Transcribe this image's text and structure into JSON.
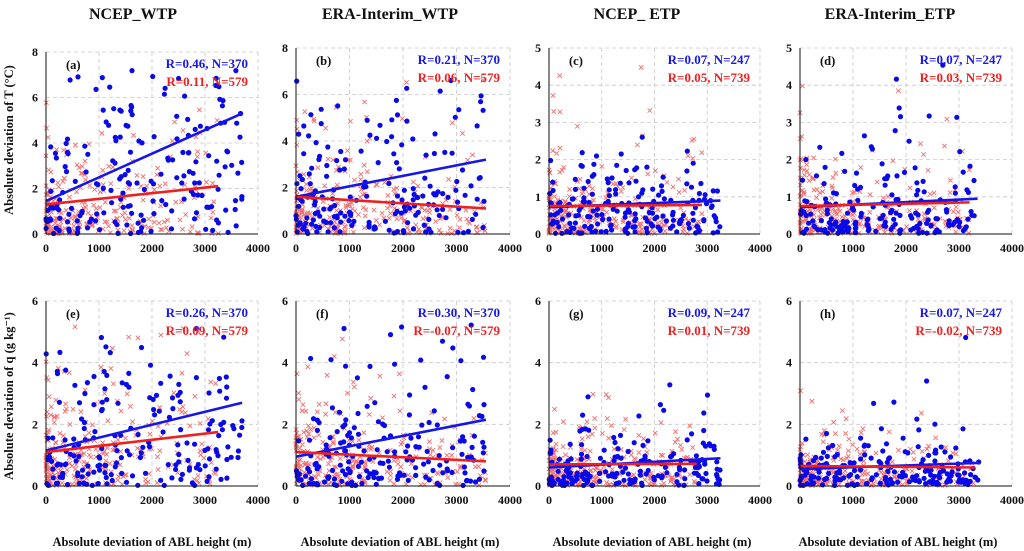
{
  "figure": {
    "column_titles": [
      "NCEP_WTP",
      "ERA-Interim_WTP",
      "NCEP_ ETP",
      "ERA-Interim_ETP"
    ],
    "xlabel": "Absolute deviation of ABL height (m)",
    "ylabel_top": "Absolute deviation of T (°C)",
    "ylabel_bottom": "Absolute deviation of q (g kg⁻¹)"
  },
  "colors": {
    "wtp_ncep_series": "#1616e6",
    "etp_series": "#ee2020",
    "wtp_scatter": "#0a0ae8",
    "x_scatter": "#f07070",
    "grid": "#c8c8c8"
  },
  "chart_data": [
    {
      "id": "a",
      "type": "scatter",
      "panel_label": "(a)",
      "xlim": [
        0,
        4000
      ],
      "ylim": [
        0,
        8
      ],
      "xticks": [
        0,
        1000,
        2000,
        3000,
        4000
      ],
      "yticks": [
        0,
        2,
        4,
        6,
        8
      ],
      "series": [
        {
          "name": "blue",
          "marker": "circle",
          "stat_text": "R=0.46, N=370",
          "n": 370,
          "fit": [
            [
              0,
              1.45
            ],
            [
              3700,
              5.3
            ]
          ],
          "x_extent": [
            0,
            3700
          ],
          "y_mean": 2.6
        },
        {
          "name": "red",
          "marker": "x",
          "stat_text": "R=0.11, N=579",
          "n": 579,
          "fit": [
            [
              0,
              1.3
            ],
            [
              3250,
              2.1
            ]
          ],
          "x_extent": [
            0,
            3250
          ],
          "y_mean": 1.6
        }
      ]
    },
    {
      "id": "b",
      "type": "scatter",
      "panel_label": "(b)",
      "xlim": [
        0,
        4000
      ],
      "ylim": [
        0,
        8
      ],
      "xticks": [
        0,
        1000,
        2000,
        3000,
        4000
      ],
      "yticks": [
        0,
        2,
        4,
        6,
        8
      ],
      "series": [
        {
          "name": "blue",
          "marker": "circle",
          "stat_text": "R=0.21, N=370",
          "n": 370,
          "fit": [
            [
              0,
              1.6
            ],
            [
              3550,
              3.2
            ]
          ],
          "x_extent": [
            0,
            3550
          ],
          "y_mean": 2.3
        },
        {
          "name": "red",
          "marker": "x",
          "stat_text": "R=0.06, N=579",
          "n": 579,
          "fit": [
            [
              0,
              1.6
            ],
            [
              3550,
              1.1
            ]
          ],
          "x_extent": [
            0,
            3550
          ],
          "y_mean": 1.5
        }
      ]
    },
    {
      "id": "c",
      "type": "scatter",
      "panel_label": "(c)",
      "xlim": [
        0,
        4000
      ],
      "ylim": [
        0,
        5
      ],
      "xticks": [
        0,
        1000,
        2000,
        3000,
        4000
      ],
      "yticks": [
        0,
        1,
        2,
        3,
        4,
        5
      ],
      "series": [
        {
          "name": "blue",
          "marker": "circle",
          "stat_text": "R=0.07, N=247",
          "n": 247,
          "fit": [
            [
              0,
              0.72
            ],
            [
              3250,
              0.9
            ]
          ],
          "x_extent": [
            0,
            3250
          ],
          "y_mean": 0.8
        },
        {
          "name": "red",
          "marker": "x",
          "stat_text": "R=0.05, N=739",
          "n": 739,
          "fit": [
            [
              0,
              0.75
            ],
            [
              2900,
              0.78
            ]
          ],
          "x_extent": [
            0,
            2900
          ],
          "y_mean": 0.75
        }
      ]
    },
    {
      "id": "d",
      "type": "scatter",
      "panel_label": "(d)",
      "xlim": [
        0,
        4000
      ],
      "ylim": [
        0,
        5
      ],
      "xticks": [
        0,
        1000,
        2000,
        3000,
        4000
      ],
      "yticks": [
        0,
        1,
        2,
        3,
        4,
        5
      ],
      "series": [
        {
          "name": "blue",
          "marker": "circle",
          "stat_text": "R=0.07, N=247",
          "n": 247,
          "fit": [
            [
              0,
              0.72
            ],
            [
              3350,
              0.95
            ]
          ],
          "x_extent": [
            0,
            3350
          ],
          "y_mean": 0.8
        },
        {
          "name": "red",
          "marker": "x",
          "stat_text": "R=0.03, N=739",
          "n": 739,
          "fit": [
            [
              0,
              0.75
            ],
            [
              3200,
              0.85
            ]
          ],
          "x_extent": [
            0,
            3200
          ],
          "y_mean": 0.75
        }
      ]
    },
    {
      "id": "e",
      "type": "scatter",
      "panel_label": "(e)",
      "xlim": [
        0,
        4000
      ],
      "ylim": [
        0,
        6
      ],
      "xticks": [
        0,
        1000,
        2000,
        3000,
        4000
      ],
      "yticks": [
        0,
        2,
        4,
        6
      ],
      "series": [
        {
          "name": "blue",
          "marker": "circle",
          "stat_text": "R=0.26, N=370",
          "n": 370,
          "fit": [
            [
              0,
              1.15
            ],
            [
              3700,
              2.7
            ]
          ],
          "x_extent": [
            0,
            3700
          ],
          "y_mean": 1.9
        },
        {
          "name": "red",
          "marker": "x",
          "stat_text": "R=0.09, N=579",
          "n": 579,
          "fit": [
            [
              0,
              1.1
            ],
            [
              3250,
              1.75
            ]
          ],
          "x_extent": [
            0,
            3250
          ],
          "y_mean": 1.3
        }
      ]
    },
    {
      "id": "f",
      "type": "scatter",
      "panel_label": "(f)",
      "xlim": [
        0,
        4000
      ],
      "ylim": [
        0,
        6
      ],
      "xticks": [
        0,
        1000,
        2000,
        3000,
        4000
      ],
      "yticks": [
        0,
        2,
        4,
        6
      ],
      "series": [
        {
          "name": "blue",
          "marker": "circle",
          "stat_text": "R=0.30, N=370",
          "n": 370,
          "fit": [
            [
              0,
              0.95
            ],
            [
              3550,
              2.15
            ]
          ],
          "x_extent": [
            0,
            3550
          ],
          "y_mean": 1.5
        },
        {
          "name": "red",
          "marker": "x",
          "stat_text": "R=-0.07, N=579",
          "n": 579,
          "fit": [
            [
              0,
              1.1
            ],
            [
              3550,
              0.8
            ]
          ],
          "x_extent": [
            0,
            3550
          ],
          "y_mean": 1.0
        }
      ]
    },
    {
      "id": "g",
      "type": "scatter",
      "panel_label": "(g)",
      "xlim": [
        0,
        4000
      ],
      "ylim": [
        0,
        6
      ],
      "xticks": [
        0,
        1000,
        2000,
        3000,
        4000
      ],
      "yticks": [
        0,
        2,
        4,
        6
      ],
      "series": [
        {
          "name": "blue",
          "marker": "circle",
          "stat_text": "R=0.09, N=247",
          "n": 247,
          "fit": [
            [
              0,
              0.6
            ],
            [
              3250,
              0.9
            ]
          ],
          "x_extent": [
            0,
            3250
          ],
          "y_mean": 0.7
        },
        {
          "name": "red",
          "marker": "x",
          "stat_text": "R=0.01, N=739",
          "n": 739,
          "fit": [
            [
              0,
              0.7
            ],
            [
              2800,
              0.72
            ]
          ],
          "x_extent": [
            0,
            2800
          ],
          "y_mean": 0.7
        }
      ]
    },
    {
      "id": "h",
      "type": "scatter",
      "panel_label": "(h)",
      "xlim": [
        0,
        4000
      ],
      "ylim": [
        0,
        6
      ],
      "xticks": [
        0,
        1000,
        2000,
        3000,
        4000
      ],
      "yticks": [
        0,
        2,
        4,
        6
      ],
      "series": [
        {
          "name": "blue",
          "marker": "circle",
          "stat_text": "R=0.07, N=247",
          "n": 247,
          "fit": [
            [
              0,
              0.55
            ],
            [
              3400,
              0.75
            ]
          ],
          "x_extent": [
            0,
            3400
          ],
          "y_mean": 0.65
        },
        {
          "name": "red",
          "marker": "x",
          "stat_text": "R=-0.02, N=739",
          "n": 739,
          "fit": [
            [
              0,
              0.65
            ],
            [
              3300,
              0.6
            ]
          ],
          "x_extent": [
            0,
            3300
          ],
          "y_mean": 0.65
        }
      ]
    }
  ]
}
